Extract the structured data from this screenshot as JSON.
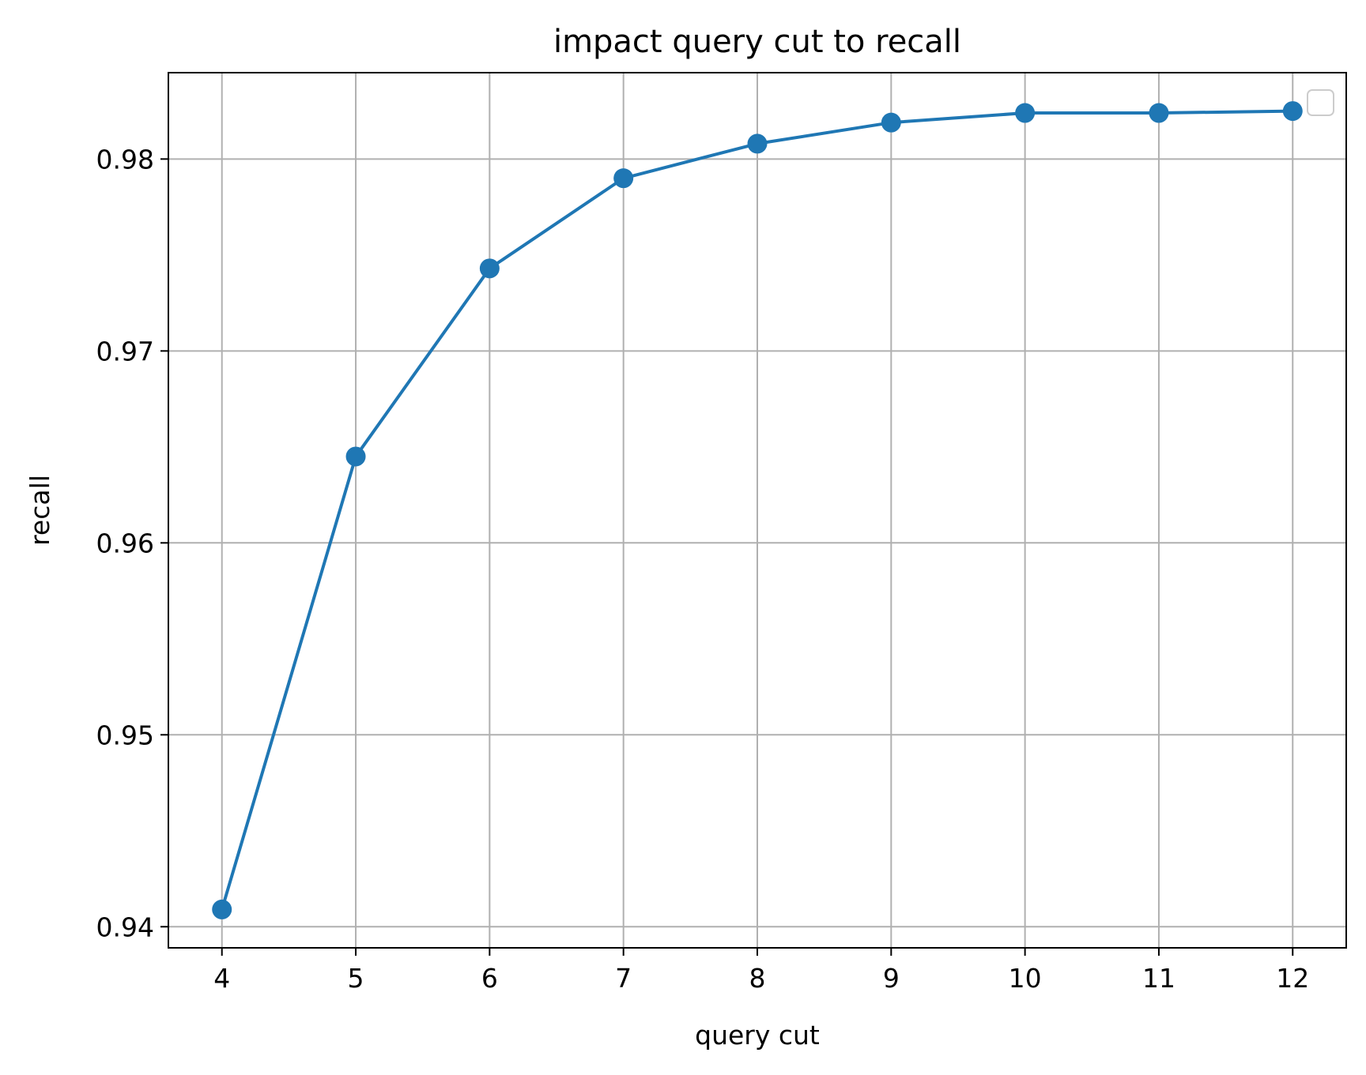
{
  "chart_data": {
    "type": "line",
    "title": "impact query cut to recall",
    "xlabel": "query cut",
    "ylabel": "recall",
    "x": [
      4,
      5,
      6,
      7,
      8,
      9,
      10,
      11,
      12
    ],
    "series": [
      {
        "values": [
          0.9409,
          0.9645,
          0.9743,
          0.979,
          0.9808,
          0.9819,
          0.9824,
          0.9824,
          0.9825
        ],
        "color": "#1f77b4",
        "marker": "circle"
      }
    ],
    "xticks": [
      4,
      5,
      6,
      7,
      8,
      9,
      10,
      11,
      12
    ],
    "xtick_labels": [
      "4",
      "5",
      "6",
      "7",
      "8",
      "9",
      "10",
      "11",
      "12"
    ],
    "yticks": [
      0.94,
      0.95,
      0.96,
      0.97,
      0.98
    ],
    "ytick_labels": [
      "0.94",
      "0.95",
      "0.96",
      "0.97",
      "0.98"
    ],
    "xlim": [
      3.6,
      12.4
    ],
    "ylim": [
      0.9389,
      0.9845
    ],
    "grid": true,
    "legend": {
      "placement": "top-right",
      "entries": []
    }
  }
}
